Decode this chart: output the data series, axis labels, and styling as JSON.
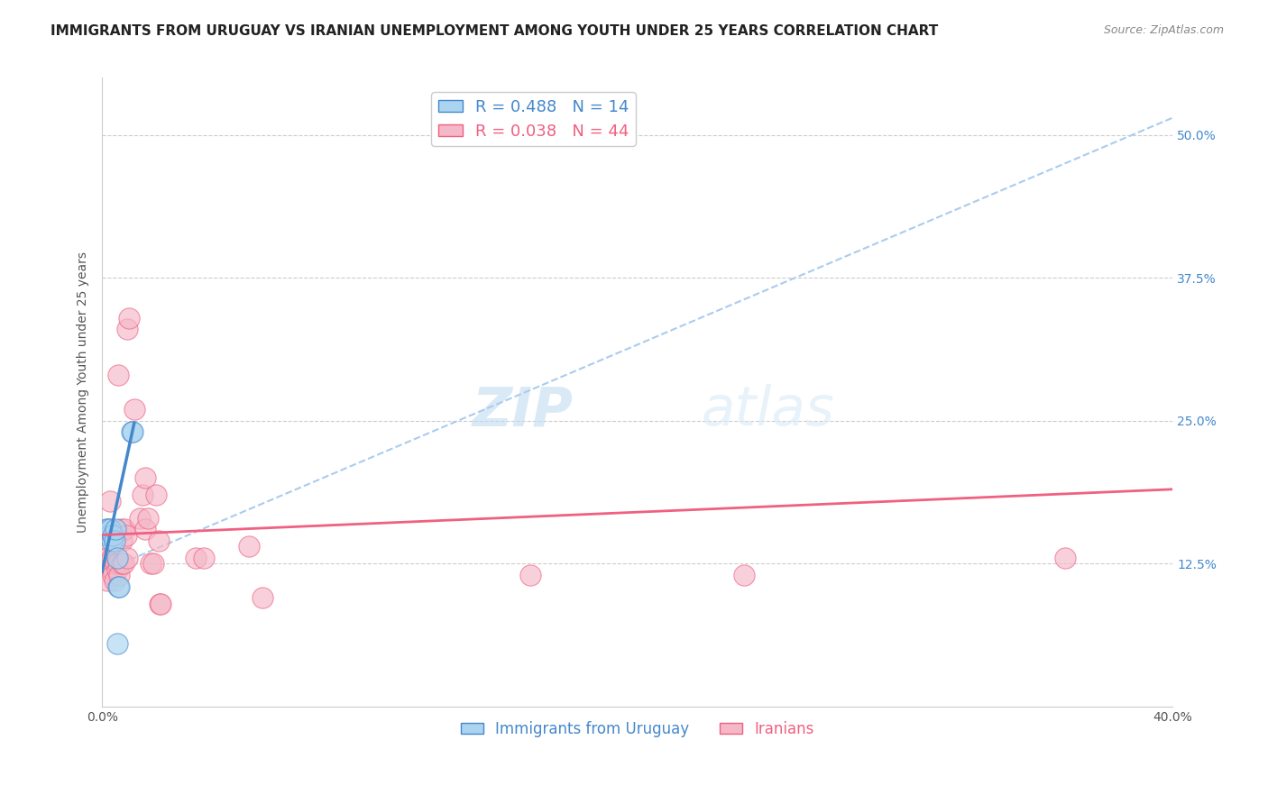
{
  "title": "IMMIGRANTS FROM URUGUAY VS IRANIAN UNEMPLOYMENT AMONG YOUTH UNDER 25 YEARS CORRELATION CHART",
  "source": "Source: ZipAtlas.com",
  "ylabel": "Unemployment Among Youth under 25 years",
  "legend_entries": [
    {
      "label": "R = 0.488   N = 14",
      "color": "#7ec8e3"
    },
    {
      "label": "R = 0.038   N = 44",
      "color": "#f4a0b0"
    }
  ],
  "legend_bottom": [
    "Immigrants from Uruguay",
    "Iranians"
  ],
  "uruguay_scatter": [
    [
      0.0015,
      0.155
    ],
    [
      0.002,
      0.155
    ],
    [
      0.0025,
      0.15
    ],
    [
      0.003,
      0.155
    ],
    [
      0.0035,
      0.145
    ],
    [
      0.004,
      0.15
    ],
    [
      0.0045,
      0.145
    ],
    [
      0.005,
      0.155
    ],
    [
      0.0055,
      0.13
    ],
    [
      0.006,
      0.105
    ],
    [
      0.0065,
      0.105
    ],
    [
      0.011,
      0.24
    ],
    [
      0.0115,
      0.24
    ],
    [
      0.0055,
      0.055
    ]
  ],
  "iranians_scatter": [
    [
      0.0015,
      0.13
    ],
    [
      0.002,
      0.11
    ],
    [
      0.0025,
      0.145
    ],
    [
      0.0025,
      0.125
    ],
    [
      0.003,
      0.155
    ],
    [
      0.003,
      0.18
    ],
    [
      0.0035,
      0.12
    ],
    [
      0.0035,
      0.13
    ],
    [
      0.004,
      0.12
    ],
    [
      0.004,
      0.115
    ],
    [
      0.0045,
      0.11
    ],
    [
      0.005,
      0.125
    ],
    [
      0.0055,
      0.12
    ],
    [
      0.006,
      0.125
    ],
    [
      0.0065,
      0.115
    ],
    [
      0.007,
      0.155
    ],
    [
      0.0075,
      0.125
    ],
    [
      0.0075,
      0.145
    ],
    [
      0.008,
      0.125
    ],
    [
      0.0085,
      0.155
    ],
    [
      0.009,
      0.15
    ],
    [
      0.0095,
      0.13
    ],
    [
      0.006,
      0.29
    ],
    [
      0.0095,
      0.33
    ],
    [
      0.012,
      0.26
    ],
    [
      0.014,
      0.165
    ],
    [
      0.015,
      0.185
    ],
    [
      0.016,
      0.2
    ],
    [
      0.016,
      0.155
    ],
    [
      0.017,
      0.165
    ],
    [
      0.018,
      0.125
    ],
    [
      0.019,
      0.125
    ],
    [
      0.01,
      0.34
    ],
    [
      0.02,
      0.185
    ],
    [
      0.021,
      0.145
    ],
    [
      0.0215,
      0.09
    ],
    [
      0.022,
      0.09
    ],
    [
      0.035,
      0.13
    ],
    [
      0.038,
      0.13
    ],
    [
      0.055,
      0.14
    ],
    [
      0.06,
      0.095
    ],
    [
      0.16,
      0.115
    ],
    [
      0.24,
      0.115
    ],
    [
      0.36,
      0.13
    ]
  ],
  "xlim": [
    0.0,
    0.4
  ],
  "ylim": [
    0.0,
    0.55
  ],
  "blue_line_color": "#4488cc",
  "pink_line_color": "#f06080",
  "dashed_line_color": "#aaccee",
  "scatter_blue": "#aad4f0",
  "scatter_pink": "#f4b8c8",
  "background": "#ffffff",
  "grid_color": "#cccccc",
  "title_fontsize": 11,
  "source_fontsize": 9,
  "blue_line_x": [
    0.0,
    0.012
  ],
  "blue_line_y": [
    0.118,
    0.248
  ],
  "dashed_line_x": [
    0.0,
    0.4
  ],
  "dashed_line_y": [
    0.118,
    0.515
  ],
  "pink_line_x": [
    0.0,
    0.4
  ],
  "pink_line_y": [
    0.15,
    0.19
  ]
}
